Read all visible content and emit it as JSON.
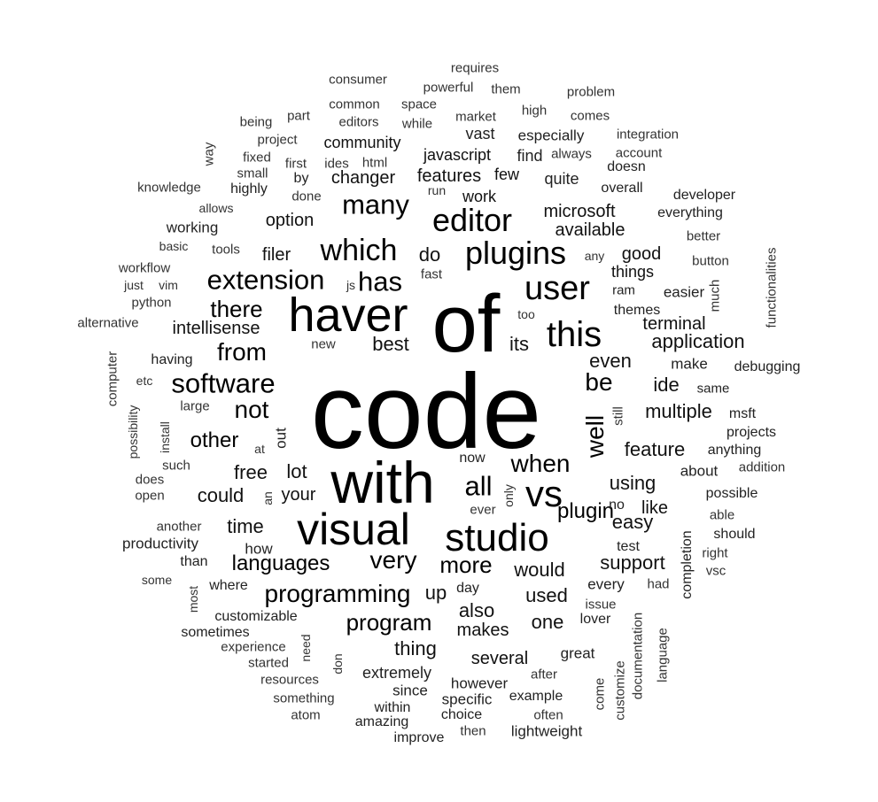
{
  "colors": {
    "text": "#222222",
    "background": "#ffffff"
  },
  "words": [
    {
      "text": "code"
    },
    {
      "text": "of"
    },
    {
      "text": "with"
    },
    {
      "text": "haver"
    },
    {
      "text": "visual"
    },
    {
      "text": "studio"
    },
    {
      "text": "vs"
    },
    {
      "text": "this"
    },
    {
      "text": "user"
    },
    {
      "text": "editor"
    },
    {
      "text": "plugins"
    },
    {
      "text": "which"
    },
    {
      "text": "extension"
    },
    {
      "text": "many"
    },
    {
      "text": "all"
    },
    {
      "text": "software"
    },
    {
      "text": "has"
    },
    {
      "text": "from"
    },
    {
      "text": "there"
    },
    {
      "text": "not"
    },
    {
      "text": "be"
    },
    {
      "text": "well"
    },
    {
      "text": "when"
    },
    {
      "text": "very"
    },
    {
      "text": "more"
    },
    {
      "text": "programming"
    },
    {
      "text": "languages"
    },
    {
      "text": "program"
    },
    {
      "text": "plugin"
    },
    {
      "text": "other"
    },
    {
      "text": "free"
    },
    {
      "text": "lot"
    },
    {
      "text": "could"
    },
    {
      "text": "your"
    },
    {
      "text": "would"
    },
    {
      "text": "time"
    },
    {
      "text": "used"
    },
    {
      "text": "up"
    },
    {
      "text": "also"
    },
    {
      "text": "makes"
    },
    {
      "text": "one"
    },
    {
      "text": "thing"
    },
    {
      "text": "several"
    },
    {
      "text": "features"
    },
    {
      "text": "few"
    },
    {
      "text": "changer"
    },
    {
      "text": "work"
    },
    {
      "text": "javascript"
    },
    {
      "text": "community"
    },
    {
      "text": "option"
    },
    {
      "text": "filer"
    },
    {
      "text": "do"
    },
    {
      "text": "intellisense"
    },
    {
      "text": "best"
    },
    {
      "text": "its"
    },
    {
      "text": "even"
    },
    {
      "text": "ide"
    },
    {
      "text": "application"
    },
    {
      "text": "terminal"
    },
    {
      "text": "multiple"
    },
    {
      "text": "feature"
    },
    {
      "text": "using"
    },
    {
      "text": "easy"
    },
    {
      "text": "support"
    },
    {
      "text": "like"
    },
    {
      "text": "available"
    },
    {
      "text": "microsoft"
    },
    {
      "text": "quite"
    },
    {
      "text": "find"
    },
    {
      "text": "especially"
    },
    {
      "text": "vast"
    },
    {
      "text": "good"
    },
    {
      "text": "things"
    },
    {
      "text": "easier"
    },
    {
      "text": "ram"
    },
    {
      "text": "themes"
    },
    {
      "text": "make"
    },
    {
      "text": "same"
    },
    {
      "text": "debugging"
    },
    {
      "text": "msft"
    },
    {
      "text": "projects"
    },
    {
      "text": "anything"
    },
    {
      "text": "about"
    },
    {
      "text": "addition"
    },
    {
      "text": "possible"
    },
    {
      "text": "able"
    },
    {
      "text": "should"
    },
    {
      "text": "right"
    },
    {
      "text": "vsc"
    },
    {
      "text": "completion"
    },
    {
      "text": "test"
    },
    {
      "text": "every"
    },
    {
      "text": "had"
    },
    {
      "text": "issue"
    },
    {
      "text": "lover"
    },
    {
      "text": "great"
    },
    {
      "text": "after"
    },
    {
      "text": "example"
    },
    {
      "text": "often"
    },
    {
      "text": "lightweight"
    },
    {
      "text": "then"
    },
    {
      "text": "choice"
    },
    {
      "text": "specific"
    },
    {
      "text": "however"
    },
    {
      "text": "since"
    },
    {
      "text": "within"
    },
    {
      "text": "improve"
    },
    {
      "text": "amazing"
    },
    {
      "text": "extremely"
    },
    {
      "text": "day"
    },
    {
      "text": "ever"
    },
    {
      "text": "now"
    },
    {
      "text": "no"
    },
    {
      "text": "only"
    },
    {
      "text": "how"
    },
    {
      "text": "than"
    },
    {
      "text": "where"
    },
    {
      "text": "customizable"
    },
    {
      "text": "sometimes"
    },
    {
      "text": "experience"
    },
    {
      "text": "started"
    },
    {
      "text": "resources"
    },
    {
      "text": "something"
    },
    {
      "text": "atom"
    },
    {
      "text": "need"
    },
    {
      "text": "don"
    },
    {
      "text": "most"
    },
    {
      "text": "some"
    },
    {
      "text": "productivity"
    },
    {
      "text": "another"
    },
    {
      "text": "open"
    },
    {
      "text": "does"
    },
    {
      "text": "such"
    },
    {
      "text": "large"
    },
    {
      "text": "having"
    },
    {
      "text": "etc"
    },
    {
      "text": "install"
    },
    {
      "text": "possibility"
    },
    {
      "text": "computer"
    },
    {
      "text": "alternative"
    },
    {
      "text": "python"
    },
    {
      "text": "just"
    },
    {
      "text": "vim"
    },
    {
      "text": "workflow"
    },
    {
      "text": "basic"
    },
    {
      "text": "tools"
    },
    {
      "text": "working"
    },
    {
      "text": "allows"
    },
    {
      "text": "knowledge"
    },
    {
      "text": "highly"
    },
    {
      "text": "small"
    },
    {
      "text": "fixed"
    },
    {
      "text": "first"
    },
    {
      "text": "project"
    },
    {
      "text": "being"
    },
    {
      "text": "part"
    },
    {
      "text": "ides"
    },
    {
      "text": "html"
    },
    {
      "text": "editors"
    },
    {
      "text": "while"
    },
    {
      "text": "common"
    },
    {
      "text": "space"
    },
    {
      "text": "consumer"
    },
    {
      "text": "powerful"
    },
    {
      "text": "them"
    },
    {
      "text": "requires"
    },
    {
      "text": "problem"
    },
    {
      "text": "high"
    },
    {
      "text": "comes"
    },
    {
      "text": "market"
    },
    {
      "text": "integration"
    },
    {
      "text": "account"
    },
    {
      "text": "always"
    },
    {
      "text": "doesn"
    },
    {
      "text": "overall"
    },
    {
      "text": "developer"
    },
    {
      "text": "everything"
    },
    {
      "text": "better"
    },
    {
      "text": "button"
    },
    {
      "text": "much"
    },
    {
      "text": "functionalities"
    },
    {
      "text": "any"
    },
    {
      "text": "fast"
    },
    {
      "text": "js"
    },
    {
      "text": "too"
    },
    {
      "text": "new"
    },
    {
      "text": "done"
    },
    {
      "text": "by"
    },
    {
      "text": "run"
    },
    {
      "text": "way"
    },
    {
      "text": "at"
    },
    {
      "text": "out"
    },
    {
      "text": "an"
    },
    {
      "text": "still"
    },
    {
      "text": "documentation"
    },
    {
      "text": "language"
    },
    {
      "text": "customize"
    },
    {
      "text": "come"
    }
  ]
}
